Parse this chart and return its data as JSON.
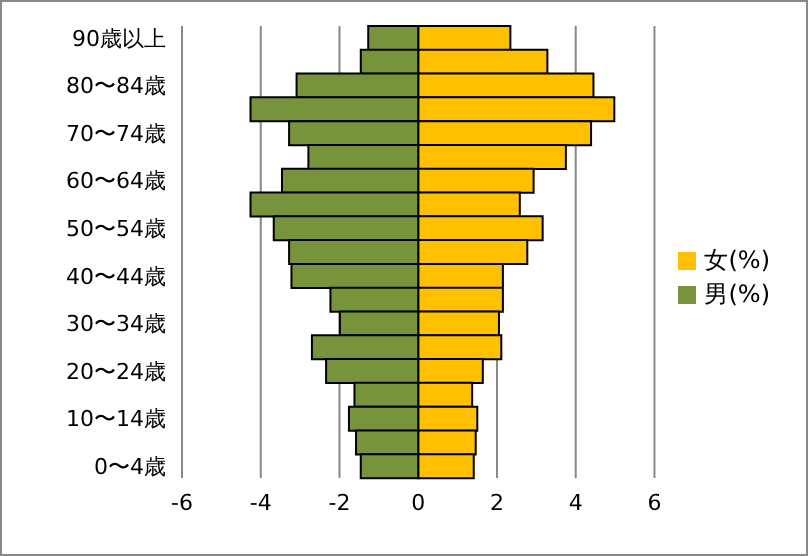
{
  "chart_data": {
    "type": "bar",
    "orientation": "horizontal",
    "stacked": true,
    "categories": [
      "90歳以上",
      null,
      "80〜84歳",
      null,
      "70〜74歳",
      null,
      "60〜64歳",
      null,
      "50〜54歳",
      null,
      "40〜44歳",
      null,
      "30〜34歳",
      null,
      "20〜24歳",
      null,
      "10〜14歳",
      null,
      "0〜4歳"
    ],
    "series": [
      {
        "name": "女(%)",
        "color": "#ffc000",
        "values": [
          2.34,
          3.28,
          4.45,
          4.98,
          4.39,
          3.75,
          2.93,
          2.58,
          3.16,
          2.77,
          2.15,
          2.15,
          2.05,
          2.11,
          1.64,
          1.37,
          1.5,
          1.46,
          1.41
        ]
      },
      {
        "name": "男(%)",
        "color": "#77933c",
        "values": [
          -1.27,
          -1.46,
          -3.09,
          -4.26,
          -3.28,
          -2.79,
          -3.46,
          -4.26,
          -3.67,
          -3.28,
          -3.22,
          -2.23,
          -1.99,
          -2.7,
          -2.34,
          -1.62,
          -1.76,
          -1.58,
          -1.46
        ]
      }
    ],
    "xlim": [
      -6,
      6
    ],
    "xticks": [
      -6,
      -4,
      -2,
      0,
      2,
      4,
      6
    ],
    "grid": "x",
    "legend": "right"
  }
}
